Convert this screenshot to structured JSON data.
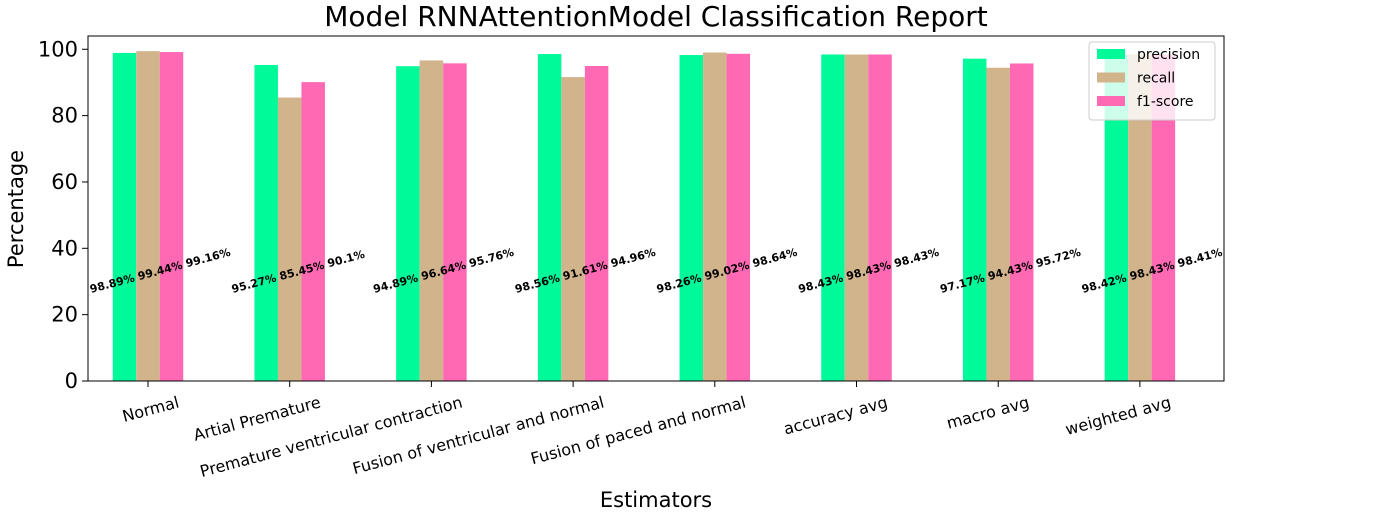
{
  "chart_data": {
    "type": "bar",
    "title": "Model RNNAttentionModel Classification Report",
    "xlabel": "Estimators",
    "ylabel": "Percentage",
    "ylim": [
      0,
      104
    ],
    "yticks": [
      0,
      20,
      40,
      60,
      80,
      100
    ],
    "grid": false,
    "legend_position": "top-right",
    "categories": [
      "Normal",
      "Artial Premature",
      "Premature ventricular contraction",
      "Fusion of ventricular and normal",
      "Fusion of paced and normal",
      "accuracy avg",
      "macro avg",
      "weighted avg"
    ],
    "series": [
      {
        "name": "precision",
        "color": "#00FA9A",
        "values": [
          98.89,
          95.27,
          94.89,
          98.56,
          98.26,
          98.43,
          97.17,
          98.42
        ]
      },
      {
        "name": "recall",
        "color": "#D2B48C",
        "values": [
          99.44,
          85.45,
          96.64,
          91.61,
          99.02,
          98.43,
          94.43,
          98.43
        ]
      },
      {
        "name": "f1-score",
        "color": "#FF69B4",
        "values": [
          99.16,
          90.1,
          95.76,
          94.96,
          98.64,
          98.43,
          95.72,
          98.41
        ]
      }
    ],
    "value_labels": [
      "98.89% 99.44% 99.16%",
      "95.27% 85.45% 90.1%",
      "94.89% 96.64% 95.76%",
      "98.56% 91.61% 94.96%",
      "98.26% 99.02% 98.64%",
      "98.43% 98.43% 98.43%",
      "97.17% 94.43% 95.72%",
      "98.42% 98.43% 98.41%"
    ]
  }
}
